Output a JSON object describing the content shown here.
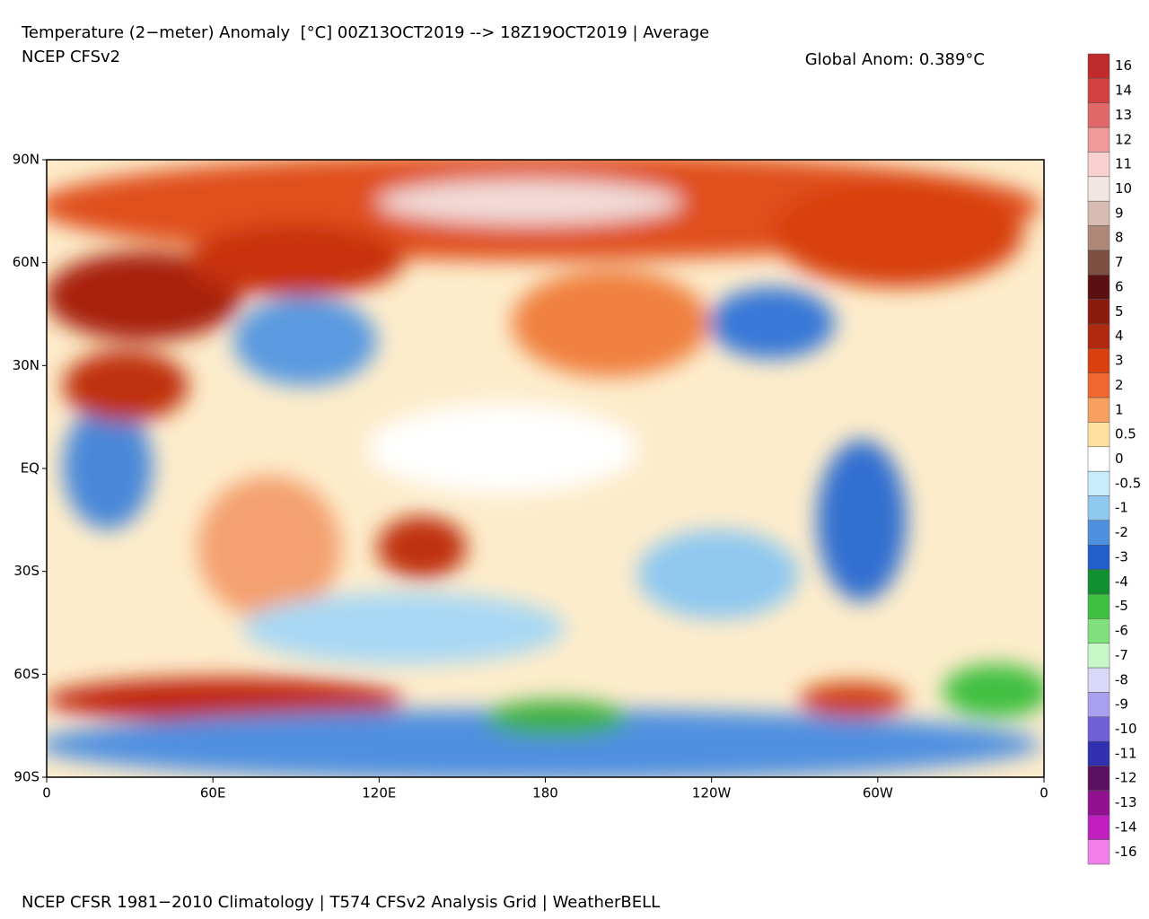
{
  "header": {
    "title": "Temperature (2−meter) Anomaly  [°C] 00Z13OCT2019 --> 18Z19OCT2019 | Average",
    "model": "NCEP CFSv2",
    "global_anom": "Global Anom: 0.389°C"
  },
  "map": {
    "lat_labels": [
      "90N",
      "60N",
      "30N",
      "EQ",
      "30S",
      "60S",
      "90S"
    ],
    "lon_labels": [
      "0",
      "60E",
      "120E",
      "180",
      "120W",
      "60W",
      "0"
    ]
  },
  "colorbar": {
    "labels": [
      16,
      14,
      13,
      12,
      11,
      10,
      9,
      8,
      7,
      6,
      5,
      4,
      3,
      2,
      1,
      0.5,
      0,
      -0.5,
      -1,
      -2,
      -3,
      -4,
      -5,
      -6,
      -7,
      -8,
      -9,
      -10,
      -11,
      -12,
      -13,
      -14,
      -16
    ],
    "colors": [
      "#bf2a2a",
      "#d24040",
      "#e06868",
      "#f09a9a",
      "#f8d0d0",
      "#f2e6e2",
      "#d8bcb2",
      "#b08878",
      "#7a5040",
      "#5a1010",
      "#8a1a0a",
      "#b02a10",
      "#d84010",
      "#f06830",
      "#f8a060",
      "#fde0a0",
      "#ffffff",
      "#c8ecfa",
      "#90c8f0",
      "#5090e0",
      "#2060c8",
      "#109030",
      "#40c040",
      "#80e080",
      "#c8f8c8",
      "#d8d8f8",
      "#a8a0f0",
      "#7060d8",
      "#3030b0",
      "#5a1060",
      "#901090",
      "#c020c0",
      "#f080e8"
    ]
  },
  "footer": {
    "text": "NCEP CFSR 1981−2010 Climatology | T574 CFSv2 Analysis Grid | WeatherBELL"
  }
}
